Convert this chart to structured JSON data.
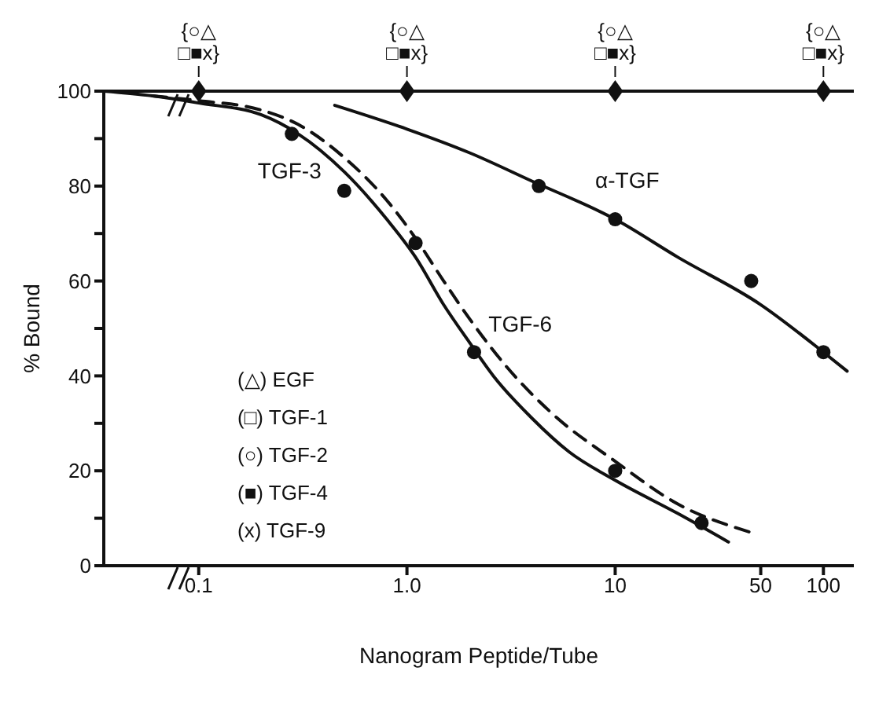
{
  "chart_data": {
    "type": "line",
    "xlabel": "Nanogram Peptide/Tube",
    "ylabel": "% Bound",
    "log": "x",
    "xlim": [
      0.035,
      140
    ],
    "xticks": [
      0.1,
      {
        "value": 1,
        "label": "1.0"
      },
      10,
      50,
      100
    ],
    "ylim": [
      0,
      100
    ],
    "yticks": [
      0,
      {
        "value": 10,
        "label": null
      },
      20,
      {
        "value": 30,
        "label": null
      },
      40,
      {
        "value": 50,
        "label": null
      },
      60,
      {
        "value": 70,
        "label": null
      },
      80,
      {
        "value": 90,
        "label": null
      },
      100
    ],
    "grid": false,
    "legend": false,
    "ref_lines": [
      {
        "axis": "y",
        "value": 100,
        "color": "#111111"
      }
    ],
    "series": [
      {
        "type": "scatter",
        "marker": "diamond",
        "color": "#111111",
        "x": [
          0.1,
          1,
          10,
          100
        ],
        "values": [
          100,
          100,
          100,
          100
        ]
      },
      {
        "type": "line",
        "name": "TGF-3",
        "color": "#111111",
        "line_style": "solid",
        "marker": "none",
        "x": [
          0.035,
          0.06,
          0.1,
          0.2,
          0.3,
          0.5,
          0.8,
          1.1,
          1.5,
          2,
          2.6,
          4,
          6,
          10,
          20,
          35
        ],
        "values": [
          100,
          99,
          97.5,
          95,
          91,
          83,
          73,
          65,
          55,
          47,
          40,
          31,
          24,
          18,
          11,
          5
        ]
      },
      {
        "type": "line",
        "name": "TGF-6",
        "color": "#111111",
        "line_style": "dashed",
        "marker": "none",
        "x": [
          0.06,
          0.1,
          0.2,
          0.3,
          0.5,
          0.8,
          1.1,
          1.5,
          2,
          3,
          5,
          10,
          20,
          45
        ],
        "values": [
          99,
          98,
          96,
          93,
          86,
          77,
          69,
          60,
          52,
          42,
          32,
          22,
          13,
          7
        ]
      },
      {
        "name": "α-TGF",
        "type": "line",
        "color": "#111111",
        "line_style": "solid",
        "marker": "none",
        "x": [
          0.45,
          1,
          2,
          4,
          10,
          20,
          50,
          100,
          130
        ],
        "values": [
          97,
          92,
          87,
          81,
          73,
          65,
          55,
          45,
          41
        ]
      },
      {
        "type": "scatter",
        "marker": "circle",
        "color": "#111111",
        "x": [
          0.28,
          0.5,
          1.1,
          2.1,
          10,
          26
        ],
        "values": [
          91,
          79,
          68,
          45,
          20,
          9
        ]
      },
      {
        "marker": "circle",
        "color": "#111111",
        "type": "scatter",
        "x": [
          4.3,
          10,
          45,
          100
        ],
        "values": [
          80,
          73,
          60,
          45
        ]
      }
    ],
    "annotations": [
      {
        "text": "{○△ □■x}",
        "x": 0.1,
        "y": 100
      },
      {
        "text": "{○△ □■x}",
        "x": 1,
        "y": 100
      },
      {
        "text": "{○△ □■x}",
        "x": 10,
        "y": 100
      },
      {
        "text": "{○△ □■x}",
        "x": 100,
        "y": 100
      },
      "(△) EGF",
      "(□) TGF-1",
      "(○) TGF-2",
      "(■) TGF-4",
      "(x) TGF-9"
    ]
  }
}
